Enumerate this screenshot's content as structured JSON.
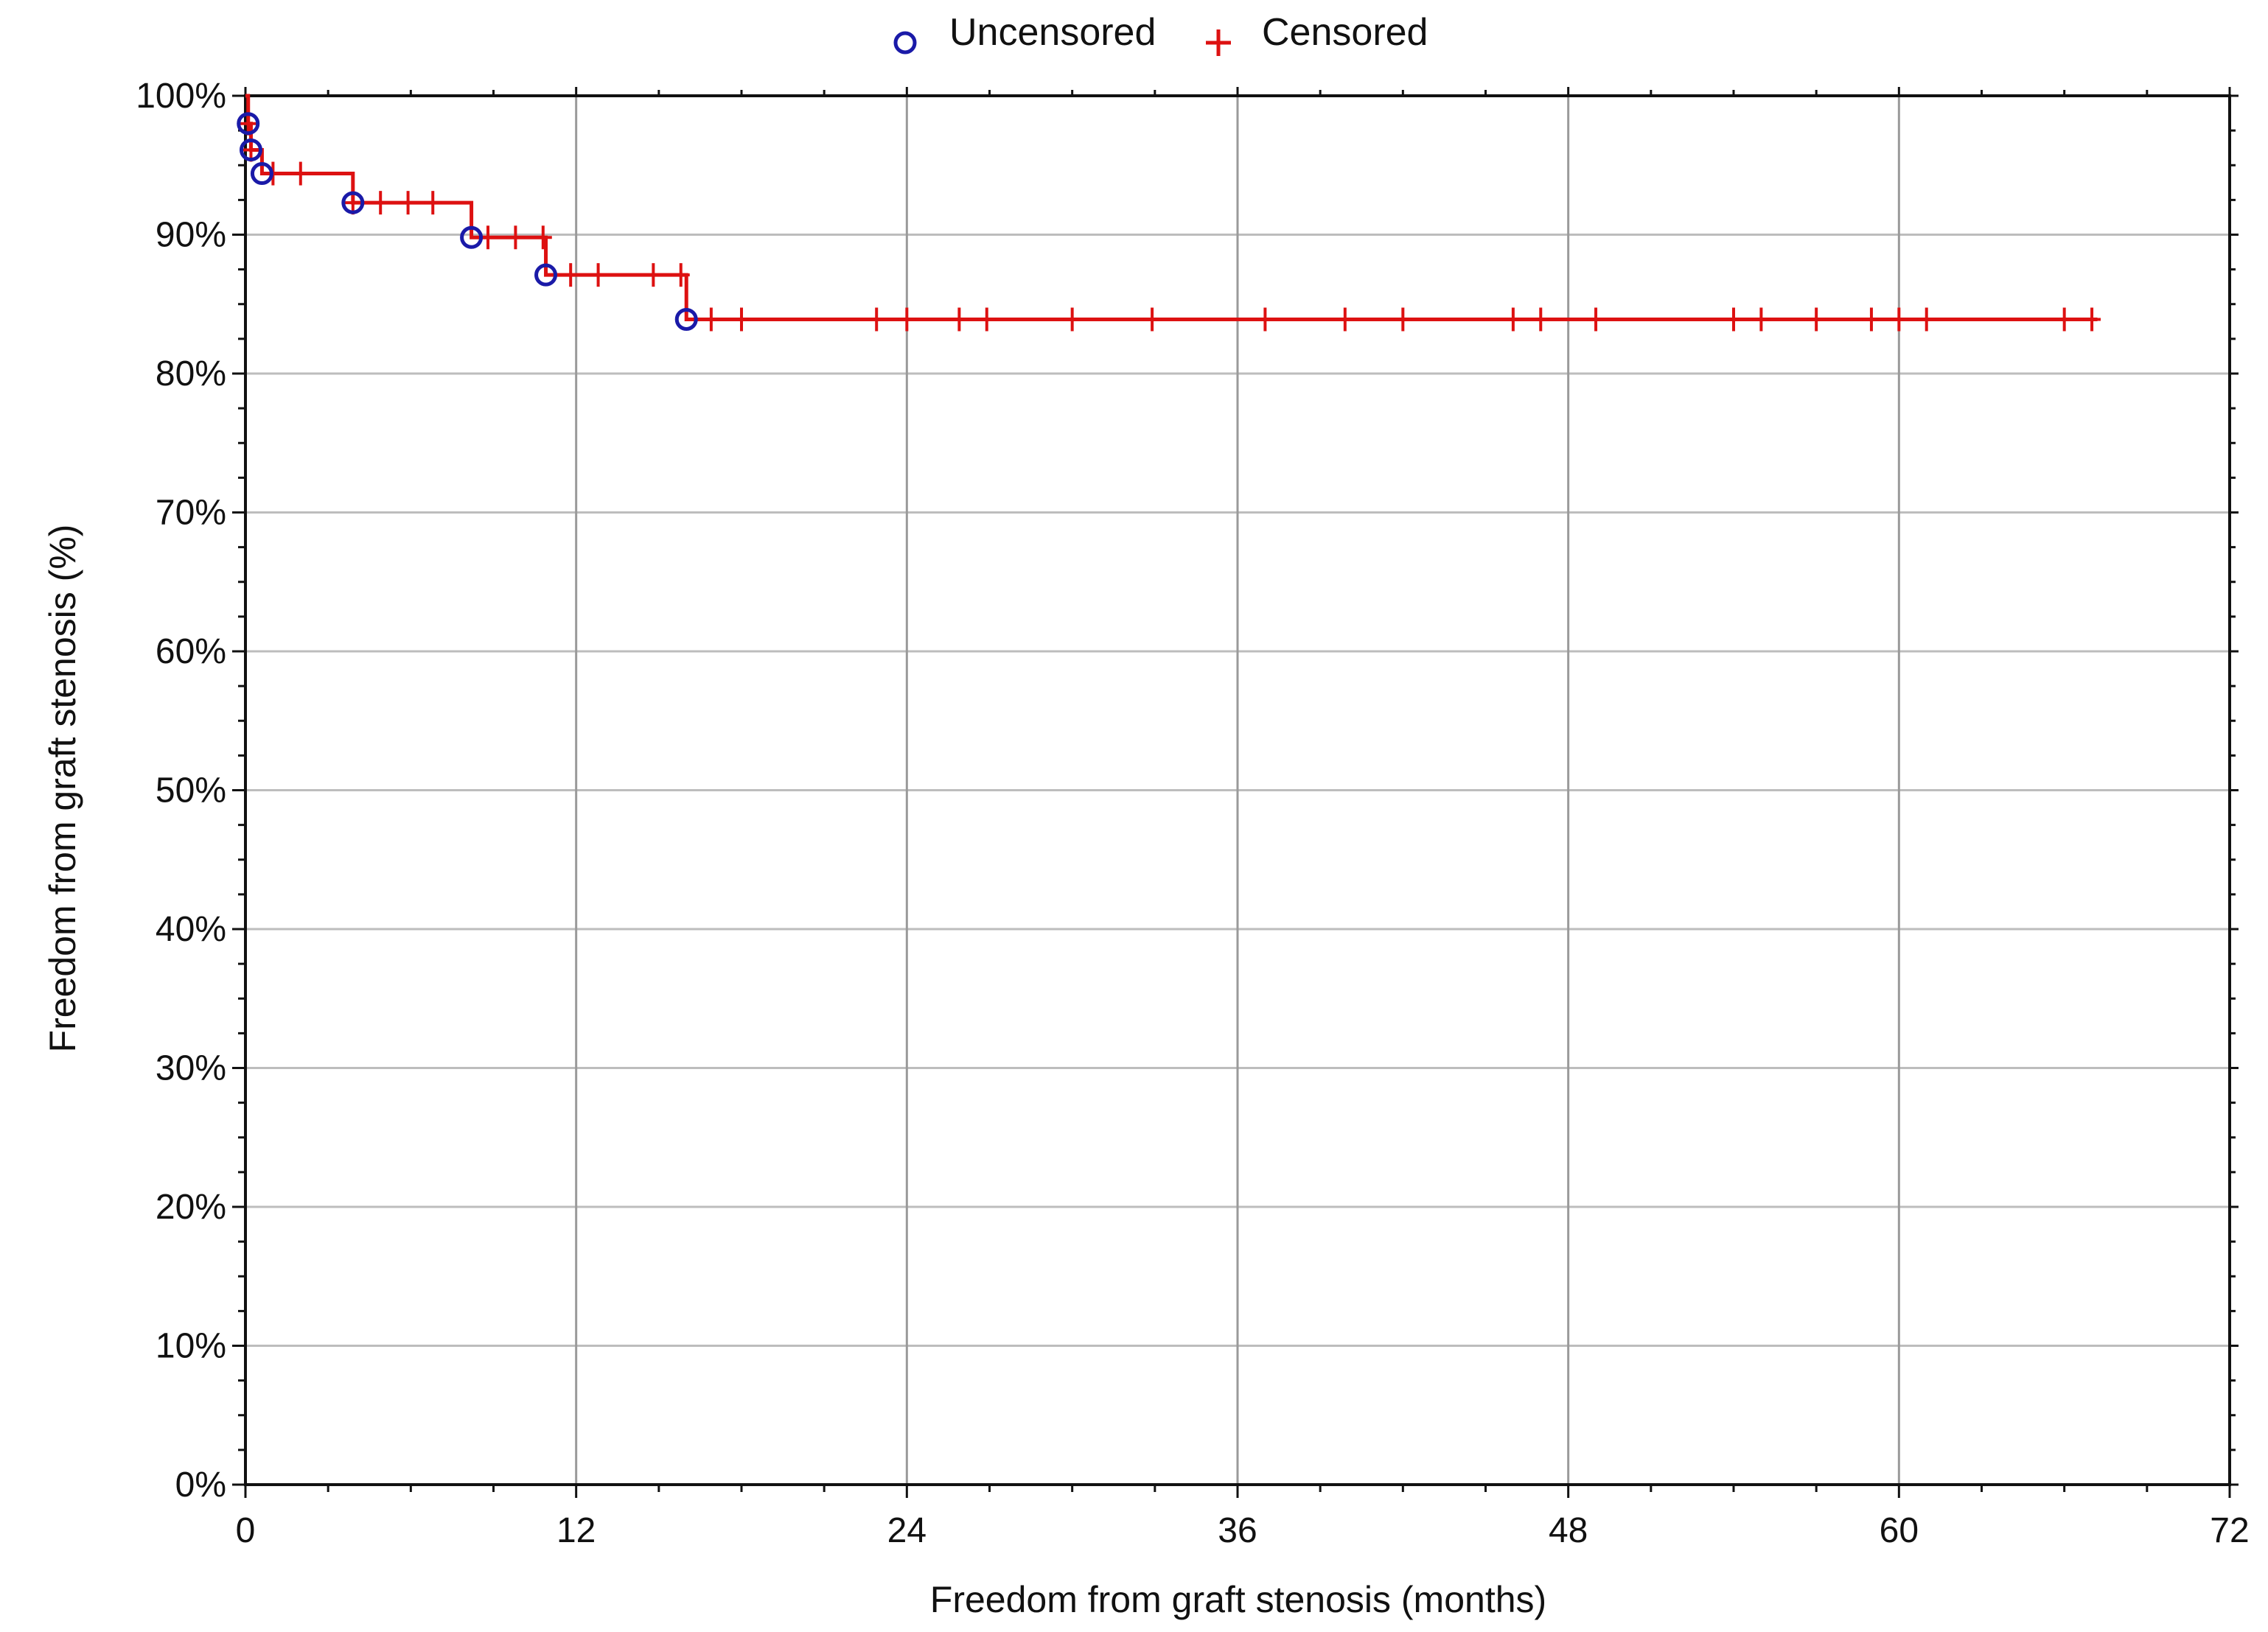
{
  "chart_data": {
    "type": "line",
    "subtype": "kaplan-meier-step",
    "xlabel": "Freedom from graft stenosis (months)",
    "ylabel": "Freedom from graft stenosis (%)",
    "xlim": [
      0,
      72
    ],
    "ylim": [
      0,
      100
    ],
    "x_ticks": [
      0,
      12,
      24,
      36,
      48,
      60,
      72
    ],
    "y_ticks": [
      0,
      10,
      20,
      30,
      40,
      50,
      60,
      70,
      80,
      90,
      100
    ],
    "y_tick_labels": [
      "0%",
      "10%",
      "20%",
      "30%",
      "40%",
      "50%",
      "60%",
      "70%",
      "80%",
      "90%",
      "100%"
    ],
    "grid": true,
    "legend": {
      "position": "top-center",
      "entries": [
        {
          "label": "Uncensored",
          "marker": "circle",
          "color": "#1a1aa8"
        },
        {
          "label": "Censored",
          "marker": "plus",
          "color": "#dd1111"
        }
      ]
    },
    "line_color": "#dd1111",
    "step_curve": [
      {
        "x": 0,
        "y": 100
      },
      {
        "x": 0.1,
        "y": 98.0
      },
      {
        "x": 0.2,
        "y": 96.1
      },
      {
        "x": 0.6,
        "y": 94.4
      },
      {
        "x": 3.9,
        "y": 92.3
      },
      {
        "x": 8.2,
        "y": 89.8
      },
      {
        "x": 10.9,
        "y": 87.1
      },
      {
        "x": 16.0,
        "y": 83.9
      },
      {
        "x": 67.2,
        "y": 83.9
      }
    ],
    "uncensored_events": [
      {
        "x": 0.1,
        "y": 98.0
      },
      {
        "x": 0.2,
        "y": 96.1
      },
      {
        "x": 0.6,
        "y": 94.4
      },
      {
        "x": 3.9,
        "y": 92.3
      },
      {
        "x": 8.2,
        "y": 89.8
      },
      {
        "x": 10.9,
        "y": 87.1
      },
      {
        "x": 16.0,
        "y": 83.9
      }
    ],
    "censored_times": [
      0.1,
      0.2,
      1.0,
      2.0,
      3.9,
      4.9,
      5.9,
      6.8,
      8.8,
      9.8,
      10.8,
      11.8,
      12.8,
      14.8,
      15.8,
      16.9,
      18.0,
      22.9,
      24.0,
      25.9,
      26.9,
      30.0,
      32.9,
      37.0,
      39.9,
      42.0,
      46.0,
      47.0,
      49.0,
      54.0,
      55.0,
      57.0,
      59.0,
      60.0,
      61.0,
      66.0,
      67.0
    ]
  }
}
